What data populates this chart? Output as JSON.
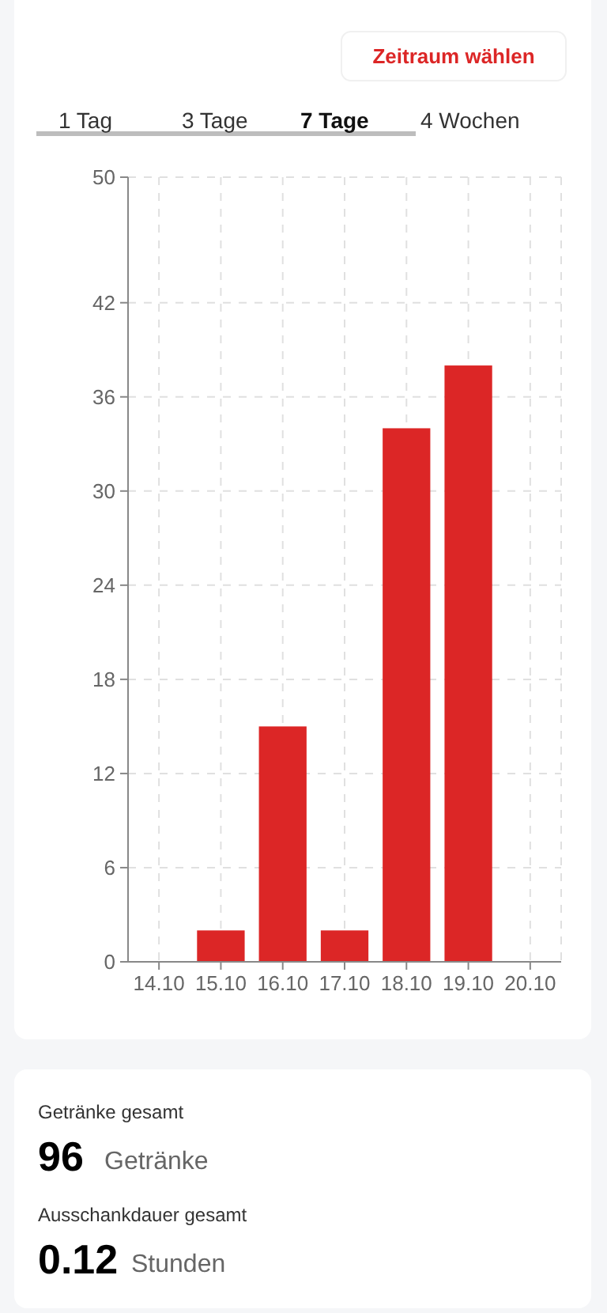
{
  "chart_data": {
    "type": "bar",
    "categories": [
      "14.10",
      "15.10",
      "16.10",
      "17.10",
      "18.10",
      "19.10",
      "20.10"
    ],
    "values": [
      0,
      2,
      15,
      2,
      34,
      38,
      0
    ],
    "color": "#dc2626",
    "ylim": [
      0,
      50
    ],
    "yticks": [
      0,
      6,
      12,
      18,
      24,
      30,
      36,
      42,
      50
    ],
    "grid": true,
    "annotations": [
      "Zeitraum wählen",
      "1 Tag",
      "3 Tage",
      "7 Tage",
      "4 Wochen",
      "Getränke gesamt",
      "96",
      "Getränke",
      "Ausschankdauer gesamt",
      "0.12",
      "Stunden"
    ]
  }
}
